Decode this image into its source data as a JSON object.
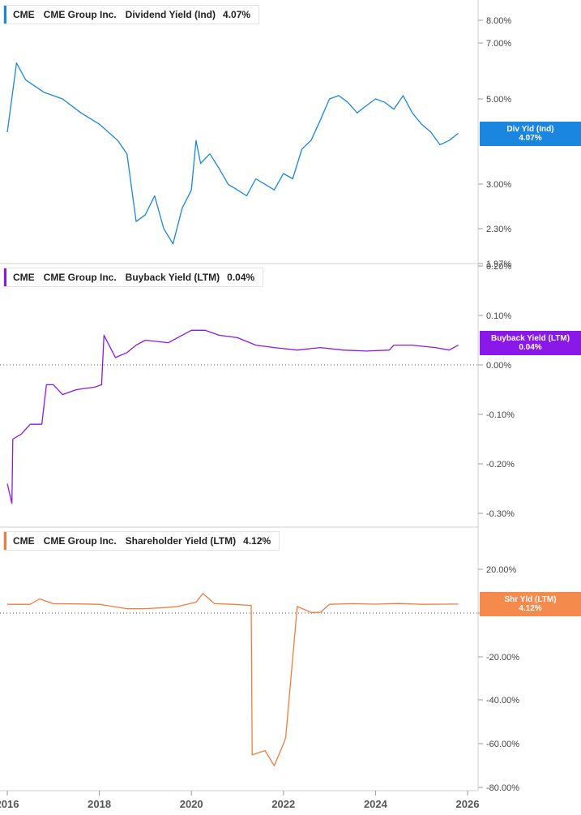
{
  "colors": {
    "dividend": "#1a86e0",
    "buyback": "#8a18e8",
    "shareholder": "#f07c3c",
    "grid": "#cfcfcf"
  },
  "legends": [
    {
      "ticker": "CME",
      "company": "CME Group Inc.",
      "metric": "Dividend Yield (Ind)",
      "value": "4.07%"
    },
    {
      "ticker": "CME",
      "company": "CME Group Inc.",
      "metric": "Buyback Yield (LTM)",
      "value": "0.04%"
    },
    {
      "ticker": "CME",
      "company": "CME Group Inc.",
      "metric": "Shareholder Yield (LTM)",
      "value": "4.12%"
    }
  ],
  "tags": [
    {
      "label": "Div Yld (Ind)",
      "value": "4.07%"
    },
    {
      "label": "Buyback Yield (LTM)",
      "value": "0.04%"
    },
    {
      "label": "Shr Yld (LTM)",
      "value": "4.12%"
    }
  ],
  "chart_data": [
    {
      "type": "line",
      "title": "",
      "series": [
        {
          "name": "Dividend Yield (Ind)",
          "x": [
            2016.0,
            2016.2,
            2016.4,
            2016.8,
            2017.2,
            2017.6,
            2018.0,
            2018.4,
            2018.6,
            2018.8,
            2019.0,
            2019.2,
            2019.4,
            2019.6,
            2019.8,
            2020.0,
            2020.1,
            2020.2,
            2020.4,
            2020.6,
            2020.8,
            2021.0,
            2021.2,
            2021.4,
            2021.6,
            2021.8,
            2022.0,
            2022.2,
            2022.4,
            2022.6,
            2022.8,
            2023.0,
            2023.2,
            2023.4,
            2023.6,
            2023.8,
            2024.0,
            2024.2,
            2024.4,
            2024.6,
            2024.8,
            2025.0,
            2025.2,
            2025.4,
            2025.6,
            2025.8
          ],
          "values": [
            4.1,
            6.2,
            5.6,
            5.2,
            5.0,
            4.6,
            4.3,
            3.9,
            3.6,
            2.4,
            2.5,
            2.8,
            2.3,
            2.1,
            2.6,
            2.9,
            3.9,
            3.4,
            3.6,
            3.3,
            3.0,
            2.9,
            2.8,
            3.1,
            3.0,
            2.9,
            3.2,
            3.1,
            3.7,
            3.9,
            4.4,
            5.0,
            5.1,
            4.9,
            4.6,
            4.8,
            5.0,
            4.9,
            4.7,
            5.1,
            4.6,
            4.3,
            4.1,
            3.8,
            3.9,
            4.07
          ]
        }
      ],
      "y_ticks": [
        "8.00%",
        "7.00%",
        "5.00%",
        "3.00%",
        "2.30%",
        "1.97%"
      ],
      "scale": "log"
    },
    {
      "type": "line",
      "title": "",
      "series": [
        {
          "name": "Buyback Yield (LTM)",
          "x": [
            2016.0,
            2016.1,
            2016.12,
            2016.3,
            2016.5,
            2016.75,
            2016.85,
            2017.0,
            2017.2,
            2017.5,
            2017.9,
            2018.05,
            2018.1,
            2018.35,
            2018.6,
            2018.8,
            2019.0,
            2019.5,
            2020.0,
            2020.3,
            2020.6,
            2021.0,
            2021.4,
            2021.8,
            2022.3,
            2022.8,
            2023.3,
            2023.8,
            2024.3,
            2024.4,
            2024.8,
            2025.3,
            2025.6,
            2025.8
          ],
          "values": [
            -0.24,
            -0.28,
            -0.15,
            -0.14,
            -0.12,
            -0.12,
            -0.04,
            -0.04,
            -0.06,
            -0.05,
            -0.045,
            -0.04,
            0.06,
            0.015,
            0.025,
            0.04,
            0.05,
            0.045,
            0.07,
            0.07,
            0.06,
            0.055,
            0.04,
            0.035,
            0.03,
            0.035,
            0.03,
            0.028,
            0.03,
            0.04,
            0.04,
            0.035,
            0.03,
            0.04
          ]
        }
      ],
      "y_ticks": [
        "0.20%",
        "0.10%",
        "0.00%",
        "-0.10%",
        "-0.20%",
        "-0.30%"
      ]
    },
    {
      "type": "line",
      "title": "",
      "series": [
        {
          "name": "Shareholder Yield (LTM)",
          "x": [
            2016.0,
            2016.5,
            2016.7,
            2017.0,
            2017.5,
            2018.0,
            2018.6,
            2019.0,
            2019.4,
            2019.7,
            2020.1,
            2020.25,
            2020.5,
            2020.9,
            2021.3,
            2021.32,
            2021.6,
            2021.8,
            2022.0,
            2022.05,
            2022.3,
            2022.6,
            2022.8,
            2023.0,
            2023.5,
            2024.0,
            2024.5,
            2025.0,
            2025.5,
            2025.8
          ],
          "values": [
            4.0,
            4.0,
            6.5,
            4.3,
            4.2,
            4.0,
            2.0,
            2.0,
            2.5,
            3.0,
            5.0,
            9.0,
            4.3,
            4.0,
            3.5,
            -65.0,
            -63.0,
            -70.0,
            -60.0,
            -57.0,
            3.0,
            0.3,
            0.3,
            4.0,
            4.3,
            4.1,
            4.4,
            4.0,
            4.1,
            4.12
          ]
        }
      ],
      "y_ticks": [
        "20.00%",
        "0.00%",
        "-20.00%",
        "-40.00%",
        "-60.00%",
        "-80.00%"
      ]
    }
  ],
  "x_ticks": [
    "2016",
    "2018",
    "2020",
    "2022",
    "2024",
    "2026"
  ]
}
